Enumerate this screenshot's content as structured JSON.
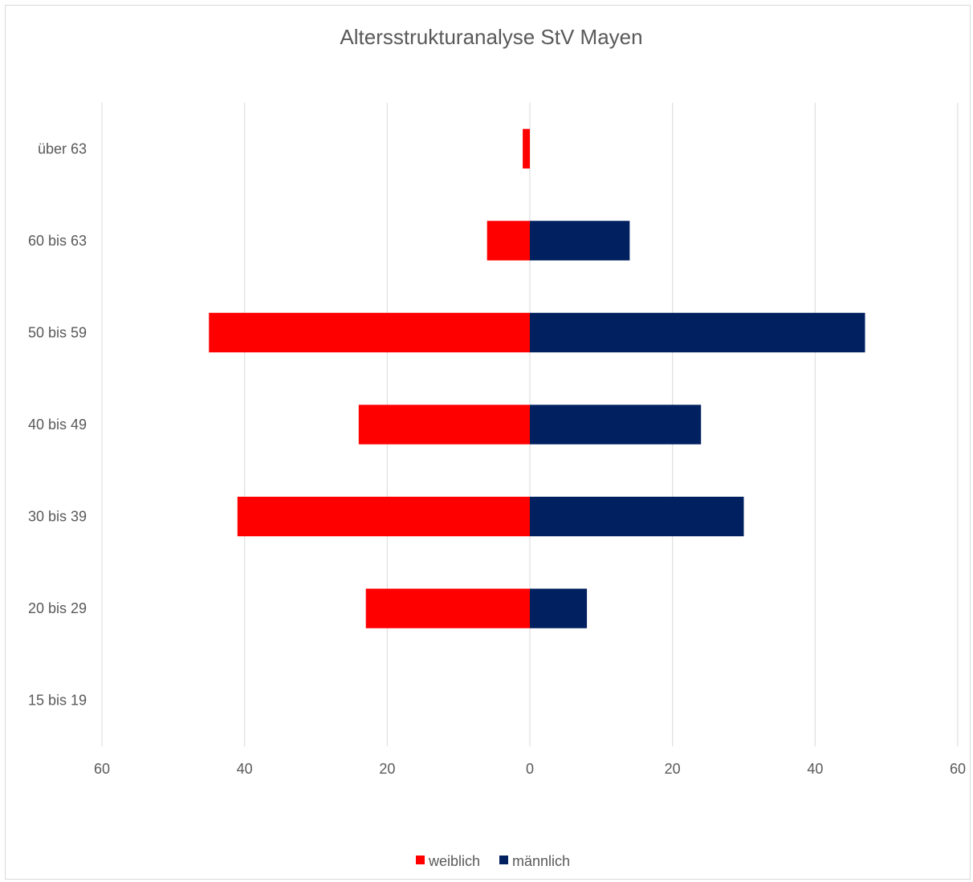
{
  "chart_data": {
    "type": "bar",
    "orientation": "horizontal",
    "title": "Altersstrukturanalyse StV Mayen",
    "xlabel": "",
    "ylabel": "",
    "categories": [
      "15 bis 19",
      "20 bis 29",
      "30 bis 39",
      "40 bis 49",
      "50 bis 59",
      "60 bis 63",
      "über 63"
    ],
    "series": [
      {
        "name": "weiblich",
        "values": [
          0,
          23,
          41,
          24,
          45,
          6,
          1
        ],
        "color": "#ff0000",
        "direction": "left"
      },
      {
        "name": "männlich",
        "values": [
          0,
          8,
          30,
          24,
          47,
          14,
          0
        ],
        "color": "#002060",
        "direction": "right"
      }
    ],
    "xlim": [
      -60,
      60
    ],
    "x_ticks": [
      -60,
      -40,
      -20,
      0,
      20,
      40,
      60
    ],
    "x_tick_labels": [
      "60",
      "40",
      "20",
      "0",
      "20",
      "40",
      "60"
    ],
    "grid": true,
    "legend": "bottom"
  }
}
